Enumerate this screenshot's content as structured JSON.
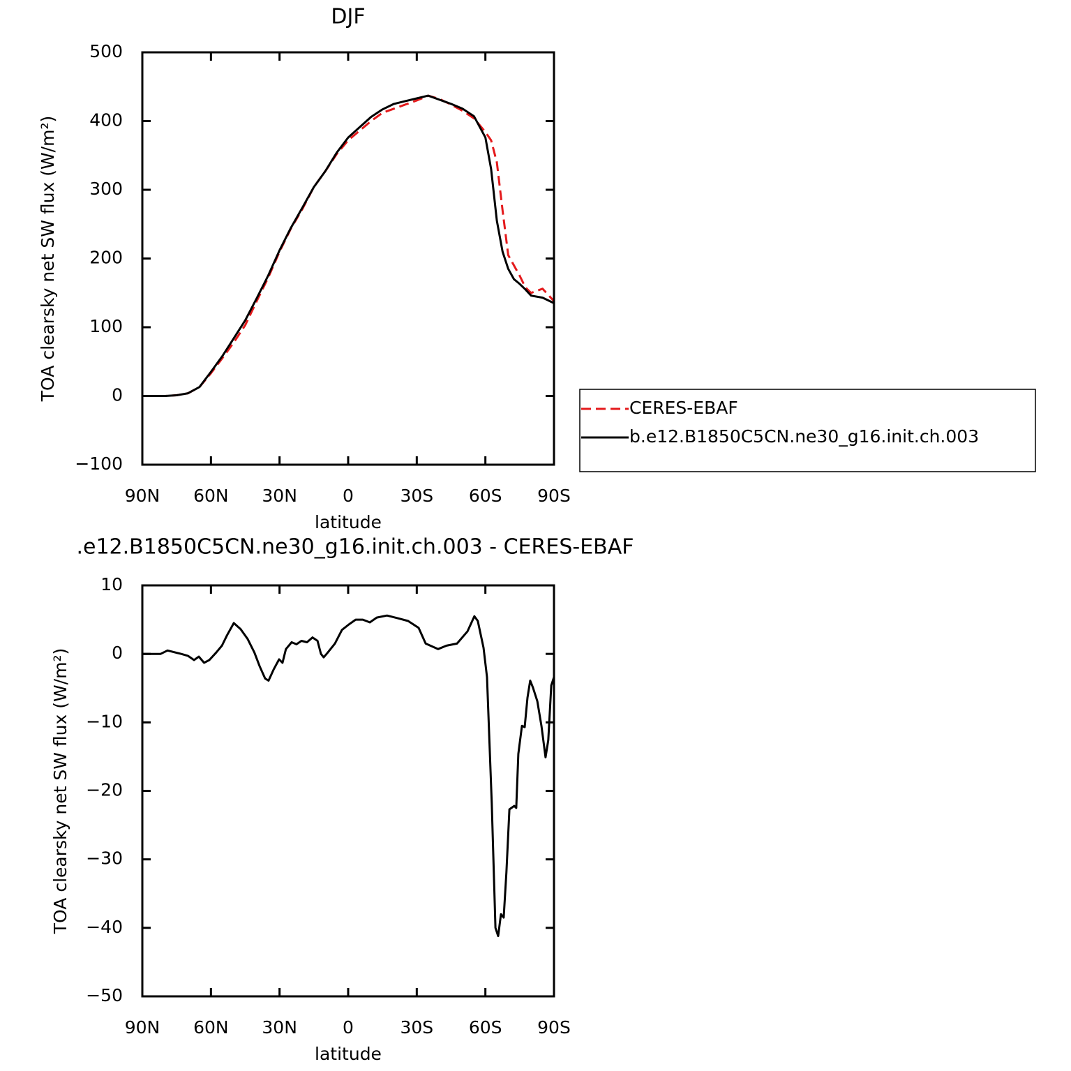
{
  "chart_data": [
    {
      "type": "line",
      "title": "DJF",
      "xlabel": "latitude",
      "ylabel": "TOA clearsky net SW flux (W/m²)",
      "x": [
        90,
        85,
        80,
        75,
        70,
        65,
        60,
        55,
        50,
        45,
        40,
        35,
        30,
        25,
        20,
        15,
        10,
        5,
        0,
        -5,
        -10,
        -15,
        -20,
        -25,
        -30,
        -35,
        -40,
        -45,
        -50,
        -55,
        -60,
        -62.5,
        -65,
        -67.5,
        -70,
        -72.5,
        -75,
        -77.5,
        -80,
        -85,
        -90
      ],
      "series": [
        {
          "name": "CERES-EBAF",
          "color": "#e41a1c",
          "style": "dashed",
          "values": [
            0,
            0,
            0,
            1,
            4,
            13,
            33,
            55,
            78,
            103,
            138,
            172,
            210,
            244,
            272,
            304,
            327,
            352,
            372,
            386,
            400,
            412,
            418,
            424,
            430,
            437,
            432,
            424,
            415,
            404,
            384,
            372,
            340,
            270,
            205,
            190,
            175,
            158,
            150,
            156,
            138
          ]
        },
        {
          "name": "b.e12.B1850C5CN.ne30_g16.init.ch.003",
          "color": "#000000",
          "style": "solid",
          "values": [
            0,
            0,
            0,
            1,
            4,
            13,
            35,
            58,
            84,
            110,
            142,
            175,
            212,
            245,
            274,
            304,
            327,
            354,
            376,
            391,
            406,
            417,
            425,
            429,
            433,
            437,
            431,
            425,
            418,
            407,
            376,
            330,
            255,
            210,
            185,
            170,
            163,
            155,
            146,
            143,
            135
          ]
        }
      ],
      "xlim": [
        90,
        -90
      ],
      "xticks": [
        {
          "value": 90,
          "label": "90N"
        },
        {
          "value": 60,
          "label": "60N"
        },
        {
          "value": 30,
          "label": "30N"
        },
        0,
        {
          "value": -30,
          "label": "30S"
        },
        {
          "value": -60,
          "label": "60S"
        },
        {
          "value": -90,
          "label": "90S"
        }
      ],
      "ylim": [
        -100,
        500
      ],
      "yticks": [
        {
          "value": -100,
          "label": "−100"
        },
        0,
        100,
        200,
        300,
        400,
        500
      ],
      "legend": "right"
    },
    {
      "type": "line",
      "title": ".e12.B1850C5CN.ne30_g16.init.ch.003 - CERES-EBAF",
      "xlabel": "latitude",
      "ylabel": "TOA clearsky net SW flux (W/m²)",
      "x": [
        90,
        82,
        79,
        73,
        70,
        67.4,
        65.3,
        63,
        60.7,
        57.7,
        55.2,
        53,
        50,
        47,
        44,
        41,
        38.7,
        36.3,
        34.8,
        32.6,
        30.2,
        28.7,
        27.2,
        24.7,
        22.6,
        20.4,
        18,
        15.6,
        13.4,
        11.9,
        10.7,
        8.9,
        5.8,
        2.7,
        -0.3,
        -3.3,
        -6.4,
        -9.5,
        -12.5,
        -17,
        -21.7,
        -26.2,
        -30.8,
        -33.9,
        -39.3,
        -43,
        -47.6,
        -52.2,
        -55.2,
        -56.7,
        -59.2,
        -60.7,
        -62.8,
        -64.4,
        -65.6,
        -66.8,
        -68,
        -69.2,
        -70.5,
        -72.6,
        -73.5,
        -74.4,
        -76,
        -77.2,
        -78.4,
        -79.6,
        -80.8,
        -82.7,
        -84.5,
        -86.3,
        -87.5,
        -88.8,
        -90
      ],
      "values": [
        0,
        0,
        0.5,
        0,
        -0.3,
        -0.9,
        -0.4,
        -1.3,
        -0.9,
        0.2,
        1.2,
        2.7,
        4.5,
        3.6,
        2.2,
        0.2,
        -1.8,
        -3.6,
        -3.9,
        -2.3,
        -0.8,
        -1.3,
        0.7,
        1.7,
        1.4,
        1.9,
        1.7,
        2.4,
        1.9,
        0,
        -0.5,
        0.2,
        1.5,
        3.5,
        4.3,
        5.0,
        5.0,
        4.6,
        5.3,
        5.6,
        5.2,
        4.8,
        3.8,
        1.5,
        0.7,
        1.2,
        1.5,
        3.3,
        5.5,
        4.8,
        0.9,
        -3.4,
        -21.8,
        -40.0,
        -41.2,
        -38.0,
        -38.5,
        -31.9,
        -22.7,
        -22.2,
        -22.5,
        -14.6,
        -10.5,
        -10.7,
        -6.4,
        -3.9,
        -4.9,
        -6.9,
        -10.5,
        -15.1,
        -12.6,
        -4.6,
        -3.4
      ],
      "color": "#000000",
      "style": "solid",
      "xlim": [
        90,
        -90
      ],
      "xticks": [
        {
          "value": 90,
          "label": "90N"
        },
        {
          "value": 60,
          "label": "60N"
        },
        {
          "value": 30,
          "label": "30N"
        },
        0,
        {
          "value": -30,
          "label": "30S"
        },
        {
          "value": -60,
          "label": "60S"
        },
        {
          "value": -90,
          "label": "90S"
        }
      ],
      "ylim": [
        -50,
        10
      ],
      "yticks": [
        {
          "value": -50,
          "label": "−50"
        },
        {
          "value": -40,
          "label": "−40"
        },
        {
          "value": -30,
          "label": "−30"
        },
        {
          "value": -20,
          "label": "−20"
        },
        {
          "value": -10,
          "label": "−10"
        },
        0,
        10
      ]
    }
  ]
}
